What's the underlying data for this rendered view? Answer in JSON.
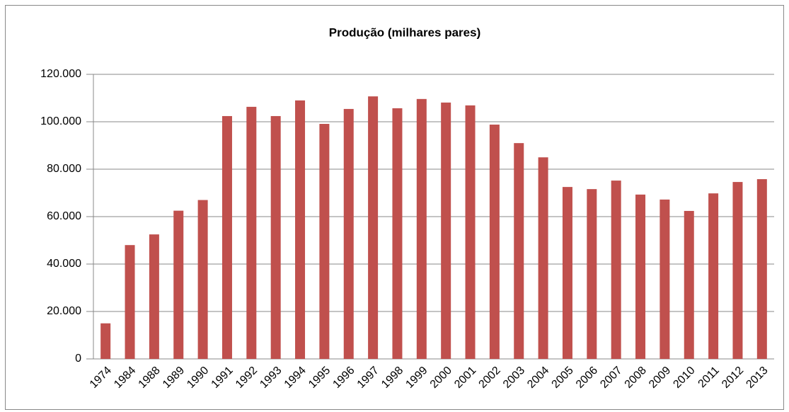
{
  "chart_data": {
    "type": "bar",
    "title": "Produção (milhares pares)",
    "categories": [
      "1974",
      "1984",
      "1988",
      "1989",
      "1990",
      "1991",
      "1992",
      "1993",
      "1994",
      "1995",
      "1996",
      "1997",
      "1998",
      "1999",
      "2000",
      "2001",
      "2002",
      "2003",
      "2004",
      "2005",
      "2006",
      "2007",
      "2008",
      "2009",
      "2010",
      "2011",
      "2012",
      "2013"
    ],
    "values": [
      15000,
      48000,
      52500,
      62500,
      67000,
      102400,
      106300,
      102400,
      109000,
      99100,
      105400,
      110700,
      105700,
      109600,
      108100,
      106900,
      98800,
      91000,
      85000,
      72500,
      71600,
      75200,
      69300,
      67200,
      62400,
      69800,
      74600,
      75800
    ],
    "color": "#c0504d",
    "ylim": [
      0,
      120000
    ],
    "yticks": [
      0,
      {
        "value": 20000,
        "label": "20.000"
      },
      {
        "value": 40000,
        "label": "40.000"
      },
      {
        "value": 60000,
        "label": "60.000"
      },
      {
        "value": 80000,
        "label": "80.000"
      },
      {
        "value": 100000,
        "label": "100.000"
      },
      {
        "value": 120000,
        "label": "120.000"
      }
    ],
    "grid": true
  }
}
